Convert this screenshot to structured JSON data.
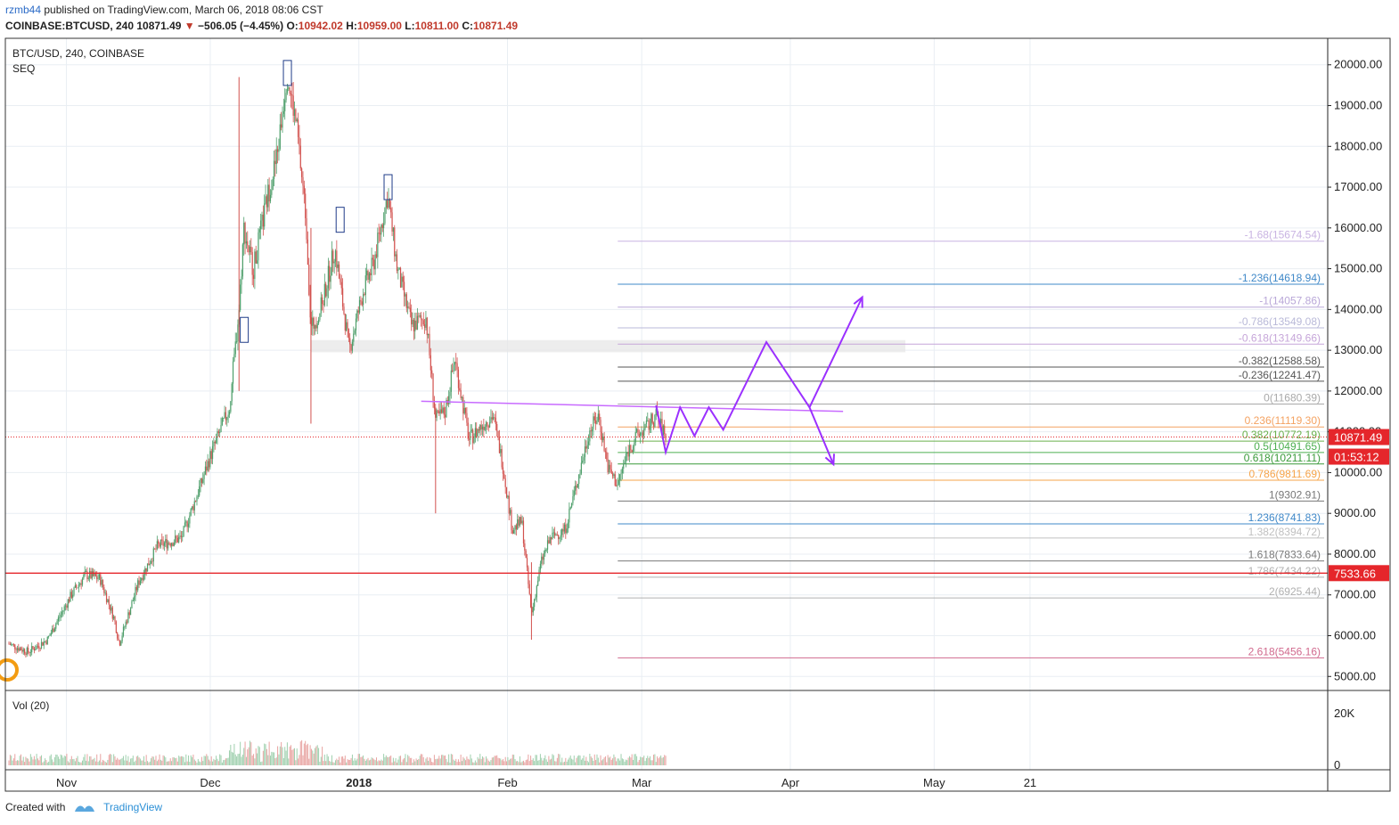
{
  "header": {
    "user": "rzmb44",
    "published": "published on TradingView.com, March 06, 2018 08:06 CST",
    "symbol": "COINBASE:BTCUSD, 240",
    "last": "10871.49",
    "arrow": "▼",
    "change": "−506.05 (−4.45%)",
    "o_label": "O:",
    "o": "10942.02",
    "h_label": "H:",
    "h": "10959.00",
    "l_label": "L:",
    "l": "10811.00",
    "c_label": "C:",
    "c": "10871.49"
  },
  "pane": {
    "title": "BTC/USD, 240, COINBASE",
    "indicator": "SEQ",
    "volume_title": "Vol (20)"
  },
  "footer": {
    "created_with": "Created with",
    "brand": "TradingView"
  },
  "colors": {
    "grid": "#e9eef3",
    "up": "#4d9e6a",
    "down": "#d2514e",
    "purple": "#9b30ff",
    "support": "#e5262b",
    "price_badge": "#e5262b"
  },
  "chart_data": {
    "type": "candlestick",
    "symbol": "COINBASE:BTCUSD",
    "timeframe": "240",
    "y_axis": {
      "ticks": [
        "20000.00",
        "19000.00",
        "18000.00",
        "17000.00",
        "16000.00",
        "15000.00",
        "14000.00",
        "13000.00",
        "12000.00",
        "11000.00",
        "10000.00",
        "9000.00",
        "8000.00",
        "7000.00",
        "6000.00",
        "5000.00"
      ],
      "ylim": [
        4700,
        20650
      ]
    },
    "x_axis": {
      "labels": [
        "Nov",
        "Dec",
        "2018",
        "Feb",
        "Mar",
        "Apr",
        "May",
        "21"
      ]
    },
    "volume_axis": {
      "ticks": [
        "20K",
        "0"
      ]
    },
    "current_price_badge": "10871.49",
    "countdown_badge": "01:53:12",
    "support_badge": "7533.66",
    "support_level": 7533.66,
    "current_price": 10871.49,
    "price_path": [
      {
        "d": "2017-10-20",
        "p": 5800
      },
      {
        "d": "2017-10-24",
        "p": 5600
      },
      {
        "d": "2017-10-28",
        "p": 5900
      },
      {
        "d": "2017-11-02",
        "p": 7000
      },
      {
        "d": "2017-11-05",
        "p": 7500
      },
      {
        "d": "2017-11-08",
        "p": 7400
      },
      {
        "d": "2017-11-11",
        "p": 6400
      },
      {
        "d": "2017-11-12",
        "p": 5800
      },
      {
        "d": "2017-11-16",
        "p": 7300
      },
      {
        "d": "2017-11-20",
        "p": 8200
      },
      {
        "d": "2017-11-25",
        "p": 8400
      },
      {
        "d": "2017-11-29",
        "p": 9700
      },
      {
        "d": "2017-12-01",
        "p": 10400
      },
      {
        "d": "2017-12-05",
        "p": 11600
      },
      {
        "d": "2017-12-07",
        "p": 14000
      },
      {
        "d": "2017-12-08",
        "p": 16000
      },
      {
        "d": "2017-12-10",
        "p": 15000
      },
      {
        "d": "2017-12-13",
        "p": 16800
      },
      {
        "d": "2017-12-15",
        "p": 17800
      },
      {
        "d": "2017-12-17",
        "p": 19800
      },
      {
        "d": "2017-12-19",
        "p": 18500
      },
      {
        "d": "2017-12-21",
        "p": 16200
      },
      {
        "d": "2017-12-22",
        "p": 13500
      },
      {
        "d": "2017-12-24",
        "p": 14000
      },
      {
        "d": "2017-12-27",
        "p": 15500
      },
      {
        "d": "2017-12-30",
        "p": 13000
      },
      {
        "d": "2018-01-02",
        "p": 14500
      },
      {
        "d": "2018-01-04",
        "p": 15100
      },
      {
        "d": "2018-01-07",
        "p": 16800
      },
      {
        "d": "2018-01-09",
        "p": 15000
      },
      {
        "d": "2018-01-12",
        "p": 13600
      },
      {
        "d": "2018-01-15",
        "p": 13800
      },
      {
        "d": "2018-01-17",
        "p": 11300
      },
      {
        "d": "2018-01-19",
        "p": 11500
      },
      {
        "d": "2018-01-21",
        "p": 12800
      },
      {
        "d": "2018-01-24",
        "p": 10800
      },
      {
        "d": "2018-01-27",
        "p": 11200
      },
      {
        "d": "2018-01-29",
        "p": 11400
      },
      {
        "d": "2018-01-31",
        "p": 10200
      },
      {
        "d": "2018-02-02",
        "p": 8600
      },
      {
        "d": "2018-02-04",
        "p": 8800
      },
      {
        "d": "2018-02-06",
        "p": 6500
      },
      {
        "d": "2018-02-08",
        "p": 7800
      },
      {
        "d": "2018-02-10",
        "p": 8400
      },
      {
        "d": "2018-02-13",
        "p": 8600
      },
      {
        "d": "2018-02-16",
        "p": 10000
      },
      {
        "d": "2018-02-18",
        "p": 11000
      },
      {
        "d": "2018-02-20",
        "p": 11400
      },
      {
        "d": "2018-02-22",
        "p": 10100
      },
      {
        "d": "2018-02-24",
        "p": 9700
      },
      {
        "d": "2018-02-26",
        "p": 10500
      },
      {
        "d": "2018-02-28",
        "p": 10900
      },
      {
        "d": "2018-03-02",
        "p": 11100
      },
      {
        "d": "2018-03-04",
        "p": 11400
      },
      {
        "d": "2018-03-06",
        "p": 10871
      }
    ],
    "lows_highs": {
      "ath": 19891,
      "dec_wick_low": 11200,
      "feb_low": 5873
    },
    "fibonacci": [
      {
        "label": "-1.68(15674.54)",
        "value": 15674.54,
        "color": "#c9b4e2"
      },
      {
        "label": "-1.236(14618.94)",
        "value": 14618.94,
        "color": "#3f88c8"
      },
      {
        "label": "-1(14057.86)",
        "value": 14057.86,
        "color": "#b9a7d8"
      },
      {
        "label": "-0.786(13549.08)",
        "value": 13549.08,
        "color": "#b9b9d8"
      },
      {
        "label": "-0.618(13149.66)",
        "value": 13149.66,
        "color": "#c6a6d9"
      },
      {
        "label": "-0.382(12588.58)",
        "value": 12588.58,
        "color": "#555555"
      },
      {
        "label": "-0.236(12241.47)",
        "value": 12241.47,
        "color": "#555555"
      },
      {
        "label": "0(11680.39)",
        "value": 11680.39,
        "color": "#a9a9a9"
      },
      {
        "label": "0.236(11119.30)",
        "value": 11119.3,
        "color": "#f4a261"
      },
      {
        "label": "0.382(10772.19)",
        "value": 10772.19,
        "color": "#6ab04c"
      },
      {
        "label": "0.5(10491.65)",
        "value": 10491.65,
        "color": "#4caf50"
      },
      {
        "label": "0.618(10211.11)",
        "value": 10211.11,
        "color": "#3a9a3a"
      },
      {
        "label": "0.786(9811.69)",
        "value": 9811.69,
        "color": "#f6a44a"
      },
      {
        "label": "1(9302.91)",
        "value": 9302.91,
        "color": "#777777"
      },
      {
        "label": "1.236(8741.83)",
        "value": 8741.83,
        "color": "#3f88c8"
      },
      {
        "label": "1.382(8394.72)",
        "value": 8394.72,
        "color": "#c0c0c0"
      },
      {
        "label": "1.618(7833.64)",
        "value": 7833.64,
        "color": "#7a7a7a"
      },
      {
        "label": "1.786(7434.22)",
        "value": 7434.22,
        "color": "#b0b0b0"
      },
      {
        "label": "2(6925.44)",
        "value": 6925.44,
        "color": "#b0b0b0"
      },
      {
        "label": "2.618(5456.16)",
        "value": 5456.16,
        "color": "#d16a8e"
      }
    ],
    "resistance_zone": [
      12950,
      13250
    ],
    "trendline": {
      "from": {
        "d": "2018-01-14",
        "p": 11750
      },
      "to": {
        "d": "2018-04-12",
        "p": 11500
      }
    },
    "projection": [
      {
        "d": "2018-03-04",
        "p": 11650
      },
      {
        "d": "2018-03-06",
        "p": 10500
      },
      {
        "d": "2018-03-09",
        "p": 11600
      },
      {
        "d": "2018-03-12",
        "p": 10900
      },
      {
        "d": "2018-03-15",
        "p": 11600
      },
      {
        "d": "2018-03-18",
        "p": 11050
      },
      {
        "d": "2018-03-27",
        "p": 13200
      },
      {
        "d": "2018-04-05",
        "p": 11600
      },
      {
        "d": "2018-04-16",
        "p": 14300
      }
    ],
    "projection_alt": [
      {
        "d": "2018-04-05",
        "p": 11600
      },
      {
        "d": "2018-04-10",
        "p": 10200
      }
    ],
    "markers": [
      {
        "d": "2017-12-08",
        "p": 13500
      },
      {
        "d": "2017-12-17",
        "p": 19800
      },
      {
        "d": "2017-12-28",
        "p": 16200
      },
      {
        "d": "2018-01-07",
        "p": 17000
      }
    ]
  }
}
